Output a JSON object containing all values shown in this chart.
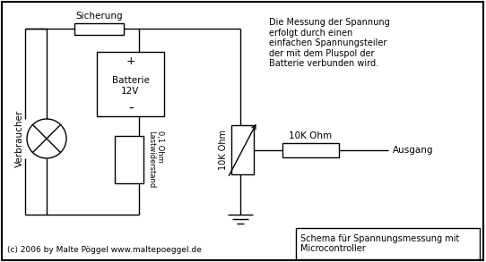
{
  "bg_color": "#ffffff",
  "line_color": "#000000",
  "fig_width": 5.42,
  "fig_height": 2.93,
  "dpi": 100,
  "title_box_text": "Schema für Spannungsmessung mit\nMicrocontroller",
  "copyright_text": "(c) 2006 by Malte Pöggel www.maltepoeggel.de",
  "description_text": "Die Messung der Spannung\nerfolgt durch einen\neinfachen Spannungsteiler\nder mit dem Pluspol der\nBatterie verbunden wird.",
  "label_sicherung": "Sicherung",
  "label_batterie": "Batterie\n12V",
  "label_verbraucher": "Verbraucher",
  "label_lastwiderstand": "0,1 Ohm\nLastwiderstand",
  "label_10k_vert": "10K Ohm",
  "label_10k_horiz": "10K Ohm",
  "label_ausgang": "Ausgang",
  "label_plus": "+",
  "label_minus": "-"
}
